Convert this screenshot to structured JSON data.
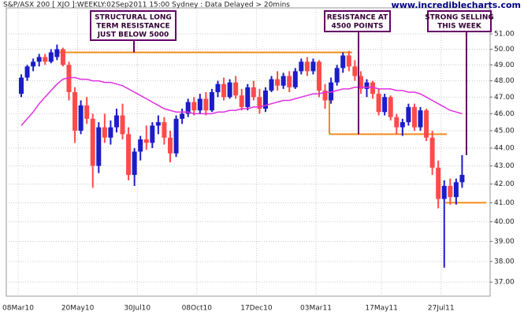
{
  "chart_data": {
    "type": "candlestick",
    "title": "S&P/ASX 200 [ XJO ]:WEEKLY:02Sep2011 15:00 Sydney : Data Delayed > 20mins",
    "watermark": "www.incrediblecharts.com",
    "categories": [
      "08Mar10",
      null,
      null,
      null,
      null,
      null,
      null,
      null,
      null,
      null,
      "20May10",
      null,
      null,
      null,
      null,
      null,
      null,
      null,
      null,
      null,
      "30Jul10",
      null,
      null,
      null,
      null,
      null,
      null,
      null,
      null,
      null,
      "08Oct10",
      null,
      null,
      null,
      null,
      null,
      null,
      null,
      null,
      null,
      "17Dec10",
      null,
      null,
      null,
      null,
      null,
      null,
      null,
      null,
      null,
      "03Mar11",
      null,
      null,
      null,
      null,
      null,
      null,
      null,
      null,
      null,
      null,
      "17May11",
      null,
      null,
      null,
      null,
      null,
      null,
      null,
      null,
      null,
      "27Jul11",
      null,
      null,
      null
    ],
    "open": [
      47.2,
      48.2,
      48.9,
      49.2,
      49.5,
      49.2,
      49.5,
      50.0,
      49.0,
      47.3,
      45.0,
      46.5,
      45.7,
      43.0,
      45.2,
      44.6,
      45.2,
      45.9,
      44.8,
      42.5,
      43.8,
      44.5,
      44.3,
      45.3,
      45.5,
      44.6,
      43.7,
      45.7,
      46.0,
      46.7,
      46.2,
      46.9,
      46.2,
      47.3,
      47.8,
      47.0,
      47.9,
      47.1,
      46.4,
      47.6,
      47.0,
      46.3,
      47.4,
      48.1,
      47.7,
      48.3,
      47.6,
      48.6,
      49.2,
      48.6,
      49.2,
      47.4,
      46.8,
      47.9,
      48.8,
      49.6,
      48.9,
      48.3,
      47.5,
      47.9,
      47.2,
      46.1,
      47.0,
      45.8,
      45.2,
      45.5,
      46.4,
      45.2,
      46.2,
      44.6,
      42.9,
      41.2,
      41.9,
      41.3,
      42.1
    ],
    "high": [
      48.4,
      49.0,
      49.4,
      49.7,
      49.7,
      50.0,
      50.3,
      50.1,
      49.2,
      47.6,
      46.8,
      47.0,
      46.0,
      45.5,
      46.0,
      45.6,
      46.3,
      46.6,
      45.2,
      44.0,
      44.7,
      45.3,
      45.5,
      45.9,
      45.8,
      45.0,
      45.9,
      46.3,
      46.9,
      47.0,
      47.2,
      47.3,
      47.5,
      48.0,
      48.2,
      48.1,
      48.3,
      47.5,
      47.8,
      48.0,
      47.5,
      47.6,
      48.3,
      48.6,
      48.5,
      48.6,
      48.8,
      49.4,
      49.5,
      49.4,
      49.3,
      47.8,
      48.2,
      49.0,
      49.8,
      49.9,
      49.3,
      48.6,
      48.1,
      48.0,
      47.5,
      47.2,
      47.1,
      46.0,
      45.7,
      46.6,
      46.6,
      46.4,
      46.3,
      45.0,
      43.3,
      42.2,
      42.3,
      42.3,
      43.6
    ],
    "low": [
      47.0,
      48.0,
      48.6,
      48.9,
      49.0,
      49.1,
      49.3,
      48.9,
      46.8,
      44.3,
      44.8,
      45.4,
      41.8,
      42.6,
      44.3,
      44.2,
      44.9,
      44.5,
      42.2,
      41.9,
      43.3,
      43.9,
      44.0,
      44.8,
      44.2,
      43.2,
      43.5,
      45.4,
      45.8,
      45.9,
      46.0,
      45.9,
      46.1,
      47.0,
      46.8,
      46.9,
      46.9,
      46.2,
      46.2,
      46.8,
      46.0,
      46.1,
      47.3,
      47.4,
      47.5,
      47.3,
      47.5,
      48.4,
      48.3,
      48.4,
      47.0,
      46.3,
      46.6,
      47.7,
      48.5,
      48.6,
      48.0,
      47.2,
      47.0,
      46.9,
      45.9,
      45.9,
      45.6,
      44.8,
      44.7,
      45.3,
      45.0,
      45.0,
      44.4,
      42.5,
      40.7,
      37.7,
      40.9,
      40.9,
      41.8
    ],
    "close": [
      48.2,
      48.9,
      49.2,
      49.5,
      49.2,
      49.8,
      50.0,
      49.0,
      47.3,
      45.0,
      46.5,
      45.7,
      43.0,
      45.2,
      44.6,
      45.2,
      45.9,
      44.8,
      42.5,
      43.8,
      44.5,
      44.3,
      45.3,
      45.5,
      44.6,
      43.7,
      45.7,
      46.0,
      46.7,
      46.2,
      46.9,
      46.2,
      47.3,
      47.8,
      47.0,
      47.9,
      47.1,
      46.4,
      47.6,
      47.0,
      46.3,
      47.4,
      48.1,
      47.7,
      48.3,
      47.6,
      48.6,
      49.2,
      48.6,
      49.2,
      47.4,
      46.8,
      47.9,
      48.8,
      49.6,
      48.9,
      48.3,
      47.5,
      47.9,
      47.2,
      46.1,
      47.0,
      45.8,
      45.2,
      45.5,
      46.4,
      45.2,
      46.2,
      44.6,
      42.9,
      41.2,
      41.9,
      41.3,
      42.1,
      42.5
    ],
    "up_color": "#1c1cc8",
    "down_color": "#ff4a4a",
    "moving_average": {
      "color": "#e030e0",
      "values": [
        45.3,
        45.7,
        46.1,
        46.6,
        47.0,
        47.4,
        47.8,
        48.1,
        48.2,
        48.2,
        48.1,
        48.1,
        48.0,
        48.0,
        47.9,
        47.9,
        47.8,
        47.7,
        47.5,
        47.3,
        47.1,
        46.9,
        46.7,
        46.5,
        46.3,
        46.2,
        46.1,
        46.1,
        46.1,
        46.0,
        46.0,
        46.0,
        46.0,
        46.1,
        46.1,
        46.2,
        46.2,
        46.3,
        46.3,
        46.4,
        46.4,
        46.5,
        46.6,
        46.7,
        46.8,
        46.8,
        46.9,
        47.0,
        47.1,
        47.2,
        47.2,
        47.3,
        47.3,
        47.4,
        47.5,
        47.5,
        47.6,
        47.6,
        47.6,
        47.6,
        47.5,
        47.5,
        47.5,
        47.4,
        47.4,
        47.3,
        47.3,
        47.2,
        47.0,
        46.8,
        46.6,
        46.4,
        46.2,
        46.1,
        46.0
      ]
    },
    "horizontal_lines": {
      "color": "#f08c1e",
      "values": [
        49.8,
        44.8,
        41.0
      ]
    },
    "annotations": [
      {
        "lines": [
          "STRUCTURAL LONG",
          "TERM RESISTANCE",
          "JUST BELOW 5000"
        ]
      },
      {
        "lines": [
          "RESISTANCE AT",
          "4500 POINTS"
        ]
      },
      {
        "lines": [
          "STRONG SELLING",
          "THIS WEEK"
        ]
      }
    ],
    "log_scale": true,
    "grid": true,
    "ylim": [
      36.37,
      52.64
    ],
    "yticks": [
      {
        "value": 37,
        "label": "37.00"
      },
      {
        "value": 38,
        "label": "38.00"
      },
      {
        "value": 39,
        "label": "39.00"
      },
      {
        "value": 40,
        "label": "40.00"
      },
      {
        "value": 41,
        "label": "41.00"
      },
      {
        "value": 42,
        "label": "42.00"
      },
      {
        "value": 43,
        "label": "43.00"
      },
      {
        "value": 44,
        "label": "44.00"
      },
      {
        "value": 45,
        "label": "45.00"
      },
      {
        "value": 46,
        "label": "46.00"
      },
      {
        "value": 47,
        "label": "47.00"
      },
      {
        "value": 48,
        "label": "48.00"
      },
      {
        "value": 49,
        "label": "49.00"
      },
      {
        "value": 50,
        "label": "50.00"
      },
      {
        "value": 51,
        "label": "51.00"
      }
    ]
  }
}
